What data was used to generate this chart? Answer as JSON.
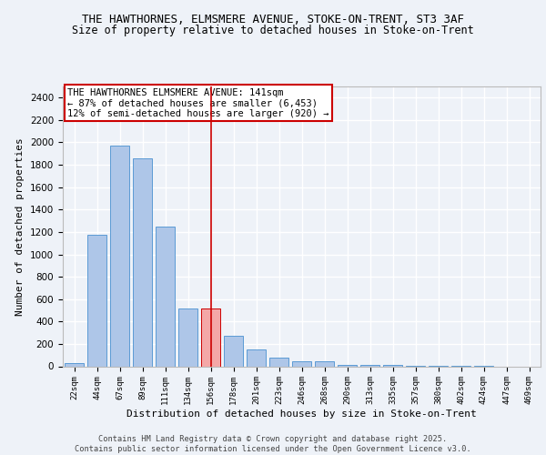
{
  "title1": "THE HAWTHORNES, ELMSMERE AVENUE, STOKE-ON-TRENT, ST3 3AF",
  "title2": "Size of property relative to detached houses in Stoke-on-Trent",
  "xlabel": "Distribution of detached houses by size in Stoke-on-Trent",
  "ylabel": "Number of detached properties",
  "categories": [
    "22sqm",
    "44sqm",
    "67sqm",
    "89sqm",
    "111sqm",
    "134sqm",
    "156sqm",
    "178sqm",
    "201sqm",
    "223sqm",
    "246sqm",
    "268sqm",
    "290sqm",
    "313sqm",
    "335sqm",
    "357sqm",
    "380sqm",
    "402sqm",
    "424sqm",
    "447sqm",
    "469sqm"
  ],
  "values": [
    25,
    1175,
    1975,
    1860,
    1245,
    520,
    520,
    275,
    150,
    80,
    45,
    45,
    15,
    10,
    10,
    5,
    5,
    2,
    2,
    0,
    0
  ],
  "bar_color": "#aec6e8",
  "bar_edge_color": "#5b9bd5",
  "highlight_bar_index": 6,
  "highlight_bar_color": "#f4a7a7",
  "highlight_bar_edge_color": "#cc0000",
  "vline_color": "#cc0000",
  "annotation_text": "THE HAWTHORNES ELMSMERE AVENUE: 141sqm\n← 87% of detached houses are smaller (6,453)\n12% of semi-detached houses are larger (920) →",
  "annotation_box_color": "#ffffff",
  "annotation_box_edge_color": "#cc0000",
  "ylim": [
    0,
    2500
  ],
  "yticks": [
    0,
    200,
    400,
    600,
    800,
    1000,
    1200,
    1400,
    1600,
    1800,
    2000,
    2200,
    2400
  ],
  "background_color": "#eef2f8",
  "grid_color": "#ffffff",
  "footer_text": "Contains HM Land Registry data © Crown copyright and database right 2025.\nContains public sector information licensed under the Open Government Licence v3.0.",
  "title_fontsize": 9,
  "subtitle_fontsize": 8.5,
  "annotation_fontsize": 7.5
}
